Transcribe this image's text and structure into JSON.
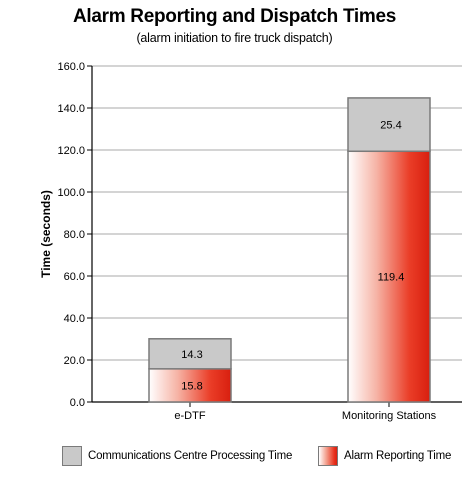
{
  "chart_data": {
    "type": "bar",
    "stacked": true,
    "title": "Alarm Reporting and Dispatch Times",
    "subtitle": "(alarm initiation to fire truck dispatch)",
    "ylabel": "Time (seconds)",
    "xlabel": "",
    "ylim": [
      0,
      160
    ],
    "yticks": [
      "0.0",
      "20.0",
      "40.0",
      "60.0",
      "80.0",
      "100.0",
      "120.0",
      "140.0",
      "160.0"
    ],
    "categories": [
      "e-DTF",
      "Monitoring Stations"
    ],
    "series": [
      {
        "name": "Alarm Reporting Time",
        "values": [
          15.8,
          119.4
        ],
        "labels": [
          "15.8",
          "119.4"
        ],
        "color": "#e32b18"
      },
      {
        "name": "Communications Centre Processing Time",
        "values": [
          14.3,
          25.4
        ],
        "labels": [
          "14.3",
          "25.4"
        ],
        "color": "#c9c9c9"
      }
    ],
    "grid": true,
    "legend_position": "bottom"
  }
}
